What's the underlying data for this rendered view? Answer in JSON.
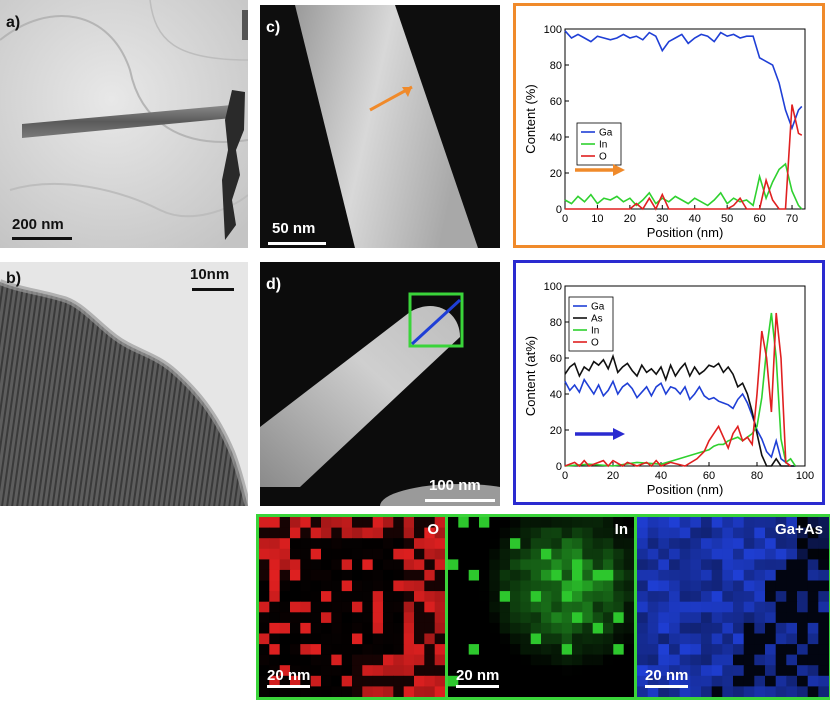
{
  "panels": {
    "a": {
      "label": "a)",
      "scale": "200 nm"
    },
    "b": {
      "label": "b)",
      "scale": "10nm"
    },
    "c": {
      "label": "c)",
      "scale": "50 nm"
    },
    "d": {
      "label": "d)",
      "scale": "100 nm"
    }
  },
  "colors": {
    "ga": "#1f3fd6",
    "in": "#2fd12f",
    "o": "#e02020",
    "as": "#111111",
    "frame_c": "#f08a2a",
    "frame_d": "#2a2ad0",
    "frame_maps": "#3ad43a"
  },
  "maps": [
    {
      "label": "O",
      "scale": "20 nm",
      "color": "#e02020"
    },
    {
      "label": "In",
      "scale": "20 nm",
      "color": "#2fd12f"
    },
    {
      "label": "Ga+As",
      "scale": "20 nm",
      "color": "#1f3fd6"
    }
  ],
  "chart_data": [
    {
      "type": "line",
      "ylabel": "Content (%)",
      "xlabel": "Position (nm)",
      "xlim": [
        0,
        74
      ],
      "ylim": [
        0,
        100
      ],
      "xticks": [
        0,
        10,
        20,
        30,
        40,
        50,
        60,
        70
      ],
      "yticks": [
        0,
        20,
        40,
        60,
        80,
        100
      ],
      "legend_position": "center-left",
      "series": [
        {
          "name": "Ga",
          "x": [
            0,
            2,
            4,
            6,
            8,
            10,
            12,
            14,
            16,
            18,
            20,
            22,
            24,
            26,
            28,
            30,
            32,
            34,
            36,
            38,
            40,
            42,
            44,
            46,
            48,
            50,
            52,
            54,
            56,
            58,
            60,
            62,
            64,
            66,
            68,
            70,
            72,
            73
          ],
          "y": [
            99,
            95,
            97,
            95,
            93,
            96,
            95,
            94,
            95,
            97,
            95,
            96,
            94,
            98,
            96,
            88,
            93,
            95,
            97,
            92,
            95,
            97,
            96,
            93,
            98,
            96,
            97,
            95,
            96,
            96,
            84,
            82,
            80,
            70,
            55,
            45,
            55,
            57
          ]
        },
        {
          "name": "In",
          "x": [
            0,
            2,
            4,
            6,
            8,
            10,
            12,
            14,
            16,
            18,
            20,
            22,
            24,
            26,
            28,
            30,
            32,
            34,
            36,
            38,
            40,
            42,
            44,
            46,
            48,
            50,
            52,
            54,
            56,
            58,
            59,
            60,
            62,
            64,
            66,
            68,
            70,
            72,
            73
          ],
          "y": [
            5,
            3,
            7,
            4,
            8,
            3,
            6,
            5,
            7,
            4,
            6,
            2,
            5,
            9,
            3,
            6,
            4,
            7,
            5,
            3,
            6,
            4,
            2,
            5,
            9,
            3,
            6,
            4,
            5,
            2,
            10,
            18,
            6,
            15,
            22,
            25,
            10,
            2,
            0
          ]
        },
        {
          "name": "O",
          "x": [
            0,
            10,
            20,
            22,
            24,
            26,
            28,
            30,
            32,
            40,
            50,
            52,
            54,
            56,
            58,
            60,
            62,
            64,
            66,
            68,
            70,
            72,
            73
          ],
          "y": [
            0,
            0,
            0,
            3,
            0,
            6,
            0,
            8,
            0,
            0,
            0,
            2,
            6,
            0,
            0,
            0,
            16,
            5,
            0,
            0,
            58,
            42,
            41
          ]
        }
      ]
    },
    {
      "type": "line",
      "ylabel": "Content (at%)",
      "xlabel": "Position (nm)",
      "xlim": [
        0,
        100
      ],
      "ylim": [
        0,
        100
      ],
      "xticks": [
        0,
        20,
        40,
        60,
        80,
        100
      ],
      "yticks": [
        0,
        20,
        40,
        60,
        80,
        100
      ],
      "legend_position": "top-left",
      "series": [
        {
          "name": "Ga",
          "x": [
            0,
            2,
            4,
            6,
            8,
            10,
            12,
            14,
            16,
            18,
            20,
            22,
            24,
            26,
            28,
            30,
            32,
            34,
            36,
            38,
            40,
            42,
            44,
            46,
            48,
            50,
            52,
            54,
            56,
            58,
            60,
            62,
            64,
            66,
            68,
            70,
            72,
            74,
            76,
            78,
            80,
            82,
            84,
            86,
            88,
            90,
            92,
            94,
            96
          ],
          "y": [
            47,
            42,
            45,
            41,
            48,
            44,
            40,
            45,
            39,
            42,
            47,
            40,
            44,
            46,
            43,
            38,
            41,
            44,
            39,
            44,
            46,
            40,
            44,
            43,
            40,
            44,
            37,
            40,
            44,
            39,
            37,
            38,
            36,
            35,
            34,
            32,
            37,
            40,
            35,
            28,
            20,
            15,
            8,
            5,
            14,
            4,
            2,
            0,
            0
          ]
        },
        {
          "name": "As",
          "x": [
            0,
            2,
            4,
            6,
            8,
            10,
            12,
            14,
            16,
            18,
            20,
            22,
            24,
            26,
            28,
            30,
            32,
            34,
            36,
            38,
            40,
            42,
            44,
            46,
            48,
            50,
            52,
            54,
            56,
            58,
            60,
            62,
            64,
            66,
            68,
            70,
            72,
            74,
            76,
            78,
            80,
            82,
            84,
            86,
            88,
            90,
            92,
            94,
            96
          ],
          "y": [
            51,
            55,
            57,
            50,
            55,
            53,
            58,
            56,
            59,
            54,
            61,
            52,
            55,
            57,
            53,
            50,
            56,
            52,
            54,
            51,
            55,
            48,
            56,
            50,
            54,
            57,
            50,
            55,
            51,
            53,
            56,
            55,
            57,
            52,
            55,
            51,
            44,
            46,
            40,
            30,
            18,
            6,
            0,
            0,
            4,
            0,
            0,
            0,
            0
          ]
        },
        {
          "name": "In",
          "x": [
            0,
            10,
            20,
            30,
            40,
            45,
            50,
            55,
            60,
            62,
            64,
            66,
            68,
            70,
            72,
            74,
            76,
            78,
            80,
            82,
            84,
            86,
            88,
            90,
            92,
            94,
            96
          ],
          "y": [
            0,
            1,
            0,
            2,
            1,
            3,
            5,
            7,
            9,
            11,
            12,
            12,
            14,
            15,
            16,
            14,
            16,
            18,
            22,
            38,
            65,
            85,
            60,
            15,
            2,
            4,
            0
          ]
        },
        {
          "name": "O",
          "x": [
            0,
            4,
            6,
            8,
            10,
            14,
            16,
            18,
            20,
            24,
            26,
            30,
            34,
            36,
            38,
            40,
            44,
            50,
            55,
            58,
            60,
            62,
            64,
            66,
            68,
            70,
            72,
            74,
            76,
            78,
            80,
            82,
            84,
            86,
            88,
            90,
            92,
            94
          ],
          "y": [
            0,
            2,
            0,
            3,
            0,
            2,
            3,
            0,
            3,
            0,
            2,
            0,
            2,
            0,
            3,
            0,
            2,
            0,
            4,
            8,
            14,
            18,
            22,
            16,
            10,
            18,
            22,
            14,
            16,
            12,
            40,
            75,
            60,
            30,
            85,
            60,
            2,
            0
          ]
        }
      ]
    }
  ]
}
